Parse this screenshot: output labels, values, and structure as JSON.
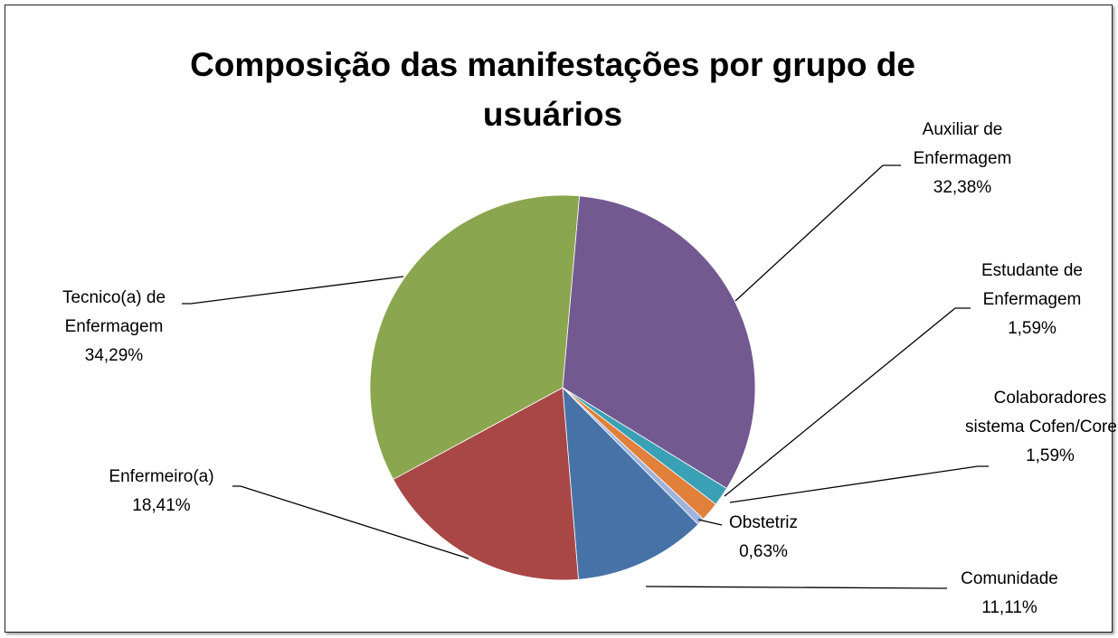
{
  "chart_data": {
    "type": "pie",
    "title": "Composição das manifestações por grupo de usuários",
    "categories": [
      "Auxiliar de Enfermagem",
      "Estudante de Enfermagem",
      "Colaboradores sistema Cofen/Corens",
      "Obstetriz",
      "Comunidade",
      "Enfermeiro(a)",
      "Tecnico(a) de Enfermagem"
    ],
    "values": [
      32.38,
      1.59,
      1.59,
      0.63,
      11.11,
      18.41,
      34.29
    ],
    "value_labels": [
      "32,38%",
      "1,59%",
      "1,59%",
      "0,63%",
      "11,11%",
      "18,41%",
      "34,29%"
    ],
    "colors": [
      "#725990",
      "#3aa0b5",
      "#e0803a",
      "#9fb4dc",
      "#4672a8",
      "#a84745",
      "#8aa64e"
    ]
  }
}
